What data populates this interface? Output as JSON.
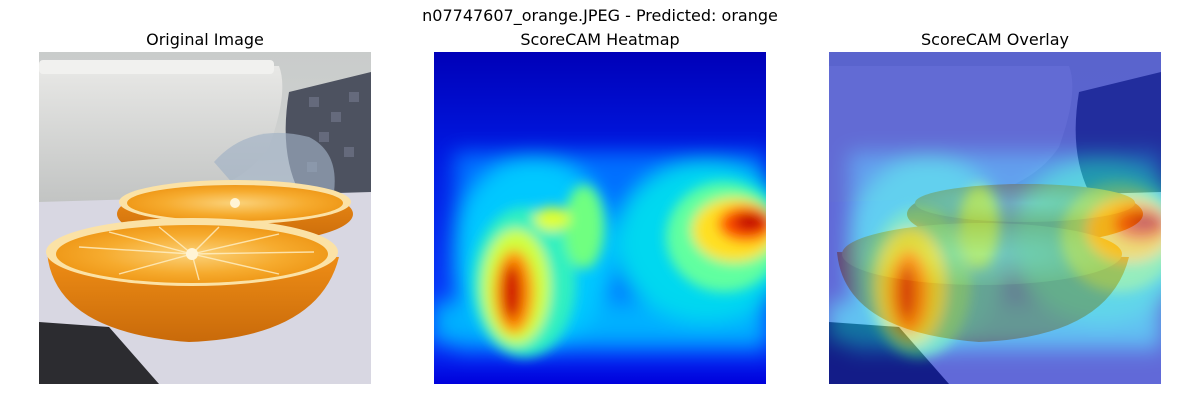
{
  "figure": {
    "suptitle": "n07747607_orange.JPEG - Predicted: orange"
  },
  "panels": [
    {
      "title": "Original Image"
    },
    {
      "title": "ScoreCAM Heatmap"
    },
    {
      "title": "ScoreCAM Overlay"
    }
  ],
  "colors": {
    "jet_low": "#0000c8",
    "jet_mid": "#22e0e8",
    "jet_high": "#c80000",
    "orange_flesh": "#f5a623",
    "orange_rind": "#e07b12"
  }
}
